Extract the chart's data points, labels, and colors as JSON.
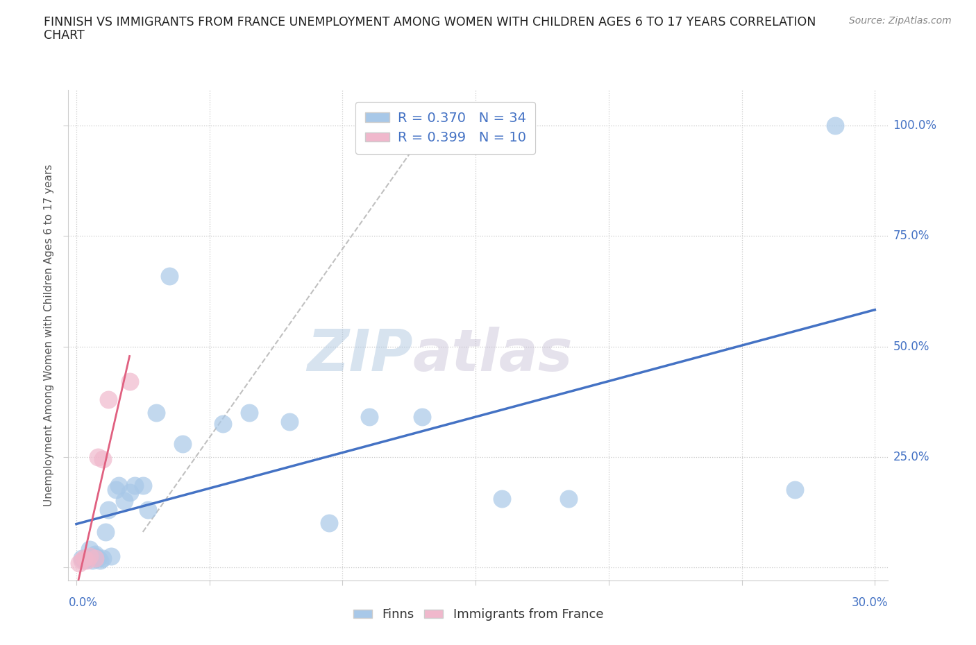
{
  "title_line1": "FINNISH VS IMMIGRANTS FROM FRANCE UNEMPLOYMENT AMONG WOMEN WITH CHILDREN AGES 6 TO 17 YEARS CORRELATION",
  "title_line2": "CHART",
  "source": "Source: ZipAtlas.com",
  "ylabel": "Unemployment Among Women with Children Ages 6 to 17 years",
  "xlim": [
    -0.003,
    0.305
  ],
  "ylim": [
    -0.03,
    1.08
  ],
  "xticks": [
    0.0,
    0.05,
    0.1,
    0.15,
    0.2,
    0.25,
    0.3
  ],
  "yticks": [
    0.0,
    0.25,
    0.5,
    0.75,
    1.0
  ],
  "blue_color": "#a8c8e8",
  "pink_color": "#f0b8cc",
  "blue_line_color": "#4472c4",
  "pink_line_color": "#e06080",
  "gray_dashed_color": "#c0c0c0",
  "r_blue": 0.37,
  "n_blue": 34,
  "r_pink": 0.399,
  "n_pink": 10,
  "watermark_zip": "ZIP",
  "watermark_atlas": "atlas",
  "finns_x": [
    0.002,
    0.003,
    0.004,
    0.005,
    0.005,
    0.006,
    0.007,
    0.007,
    0.008,
    0.009,
    0.01,
    0.011,
    0.012,
    0.013,
    0.015,
    0.016,
    0.018,
    0.02,
    0.022,
    0.025,
    0.027,
    0.03,
    0.035,
    0.04,
    0.055,
    0.065,
    0.08,
    0.095,
    0.11,
    0.13,
    0.16,
    0.185,
    0.27,
    0.285
  ],
  "finns_y": [
    0.02,
    0.015,
    0.018,
    0.022,
    0.04,
    0.015,
    0.025,
    0.03,
    0.02,
    0.015,
    0.02,
    0.08,
    0.13,
    0.025,
    0.175,
    0.185,
    0.15,
    0.17,
    0.185,
    0.185,
    0.13,
    0.35,
    0.66,
    0.28,
    0.325,
    0.35,
    0.33,
    0.1,
    0.34,
    0.34,
    0.155,
    0.155,
    0.175,
    1.0
  ],
  "france_x": [
    0.001,
    0.002,
    0.003,
    0.004,
    0.005,
    0.007,
    0.008,
    0.01,
    0.012,
    0.02
  ],
  "france_y": [
    0.01,
    0.015,
    0.02,
    0.015,
    0.025,
    0.02,
    0.25,
    0.245,
    0.38,
    0.42
  ]
}
